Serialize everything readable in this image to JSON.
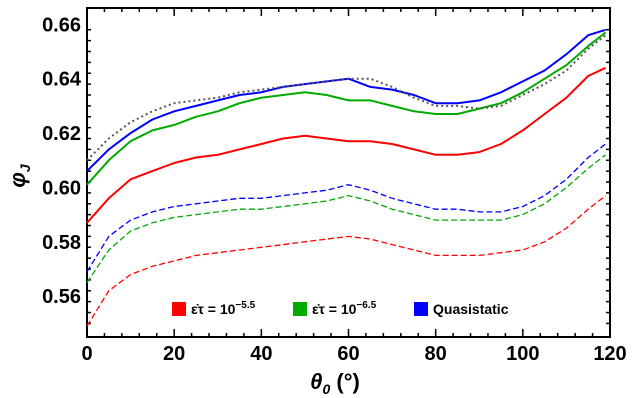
{
  "chart_data": {
    "type": "line",
    "xlabel": "θ₀ (°)",
    "xlabel_main": "θ",
    "xlabel_sub": "0",
    "xlabel_unit": " (°)",
    "ylabel": "φJ",
    "ylabel_main": "φ",
    "ylabel_sub": "J",
    "xlim": [
      0,
      120
    ],
    "ylim": [
      0.545,
      0.666
    ],
    "xticks": [
      0,
      20,
      40,
      60,
      80,
      100,
      120
    ],
    "xtick_labels": [
      "0",
      "20",
      "40",
      "60",
      "80",
      "100",
      "120"
    ],
    "yticks": [
      0.56,
      0.58,
      0.6,
      0.62,
      0.64,
      0.66
    ],
    "ytick_labels": [
      "0.56",
      "0.58",
      "0.60",
      "0.62",
      "0.64",
      "0.66"
    ],
    "grid": false,
    "legend": {
      "placement": "bottom-center",
      "entries": [
        {
          "label_prefix": "ε̇τ = 10",
          "label_exp": "−5.5",
          "color": "#ff0000"
        },
        {
          "label_prefix": "ε̇τ = 10",
          "label_exp": "−6.5",
          "color": "#00aa00"
        },
        {
          "label_prefix": "Quasistatic",
          "label_exp": "",
          "color": "#0000ff"
        }
      ]
    },
    "series": [
      {
        "name": "ε̇τ = 10^−5.5 (solid)",
        "color": "#ff0000",
        "dash": "solid",
        "x": [
          0,
          5,
          10,
          15,
          20,
          25,
          30,
          35,
          40,
          45,
          50,
          55,
          60,
          65,
          70,
          75,
          80,
          85,
          90,
          95,
          100,
          105,
          110,
          115,
          119
        ],
        "y": [
          0.587,
          0.596,
          0.603,
          0.606,
          0.609,
          0.611,
          0.612,
          0.614,
          0.616,
          0.618,
          0.619,
          0.618,
          0.617,
          0.617,
          0.616,
          0.614,
          0.612,
          0.612,
          0.613,
          0.616,
          0.621,
          0.627,
          0.633,
          0.641,
          0.644
        ]
      },
      {
        "name": "ε̇τ = 10^−6.5 (solid)",
        "color": "#00aa00",
        "dash": "solid",
        "x": [
          0,
          5,
          10,
          15,
          20,
          25,
          30,
          35,
          40,
          45,
          50,
          55,
          60,
          65,
          70,
          75,
          80,
          85,
          90,
          95,
          100,
          105,
          110,
          115,
          119
        ],
        "y": [
          0.601,
          0.61,
          0.617,
          0.621,
          0.623,
          0.626,
          0.628,
          0.631,
          0.633,
          0.634,
          0.635,
          0.634,
          0.632,
          0.632,
          0.63,
          0.628,
          0.627,
          0.627,
          0.629,
          0.631,
          0.635,
          0.64,
          0.645,
          0.652,
          0.657
        ]
      },
      {
        "name": "Quasistatic (solid)",
        "color": "#0000ff",
        "dash": "solid",
        "x": [
          0,
          5,
          10,
          15,
          20,
          25,
          30,
          35,
          40,
          45,
          50,
          55,
          60,
          65,
          70,
          75,
          80,
          85,
          90,
          95,
          100,
          105,
          110,
          115,
          119
        ],
        "y": [
          0.606,
          0.614,
          0.62,
          0.625,
          0.628,
          0.63,
          0.632,
          0.634,
          0.635,
          0.637,
          0.638,
          0.639,
          0.64,
          0.637,
          0.636,
          0.634,
          0.631,
          0.631,
          0.632,
          0.635,
          0.639,
          0.643,
          0.649,
          0.656,
          0.658
        ]
      },
      {
        "name": "Quasistatic reference (dotted)",
        "color": "#555555",
        "dash": "dotted",
        "x": [
          0,
          5,
          10,
          15,
          20,
          25,
          30,
          35,
          40,
          45,
          50,
          55,
          60,
          65,
          70,
          75,
          80,
          85,
          90,
          95,
          100,
          105,
          110,
          115,
          119
        ],
        "y": [
          0.61,
          0.618,
          0.624,
          0.628,
          0.631,
          0.632,
          0.633,
          0.635,
          0.636,
          0.637,
          0.638,
          0.639,
          0.64,
          0.64,
          0.637,
          0.633,
          0.63,
          0.63,
          0.629,
          0.63,
          0.634,
          0.638,
          0.643,
          0.651,
          0.656
        ]
      },
      {
        "name": "ε̇τ = 10^−5.5 (dashed)",
        "color": "#ff0000",
        "dash": "dashed",
        "x": [
          0,
          5,
          10,
          15,
          20,
          25,
          30,
          35,
          40,
          45,
          50,
          55,
          60,
          65,
          70,
          75,
          80,
          85,
          90,
          95,
          100,
          105,
          110,
          115,
          119
        ],
        "y": [
          0.549,
          0.562,
          0.568,
          0.571,
          0.573,
          0.575,
          0.576,
          0.577,
          0.578,
          0.579,
          0.58,
          0.581,
          0.582,
          0.581,
          0.579,
          0.577,
          0.575,
          0.575,
          0.575,
          0.576,
          0.577,
          0.58,
          0.585,
          0.592,
          0.597
        ]
      },
      {
        "name": "ε̇τ = 10^−6.5 (dashed)",
        "color": "#00aa00",
        "dash": "dashed",
        "x": [
          0,
          5,
          10,
          15,
          20,
          25,
          30,
          35,
          40,
          45,
          50,
          55,
          60,
          65,
          70,
          75,
          80,
          85,
          90,
          95,
          100,
          105,
          110,
          115,
          119
        ],
        "y": [
          0.565,
          0.577,
          0.584,
          0.587,
          0.589,
          0.59,
          0.591,
          0.592,
          0.592,
          0.593,
          0.594,
          0.595,
          0.597,
          0.595,
          0.592,
          0.59,
          0.588,
          0.588,
          0.588,
          0.588,
          0.59,
          0.594,
          0.6,
          0.607,
          0.612
        ]
      },
      {
        "name": "Quasistatic (dashed)",
        "color": "#0000ff",
        "dash": "dashed",
        "x": [
          0,
          5,
          10,
          15,
          20,
          25,
          30,
          35,
          40,
          45,
          50,
          55,
          60,
          65,
          70,
          75,
          80,
          85,
          90,
          95,
          100,
          105,
          110,
          115,
          119
        ],
        "y": [
          0.569,
          0.582,
          0.588,
          0.591,
          0.593,
          0.594,
          0.595,
          0.596,
          0.596,
          0.597,
          0.598,
          0.599,
          0.601,
          0.599,
          0.596,
          0.594,
          0.592,
          0.592,
          0.591,
          0.591,
          0.593,
          0.597,
          0.603,
          0.611,
          0.616
        ]
      }
    ]
  }
}
